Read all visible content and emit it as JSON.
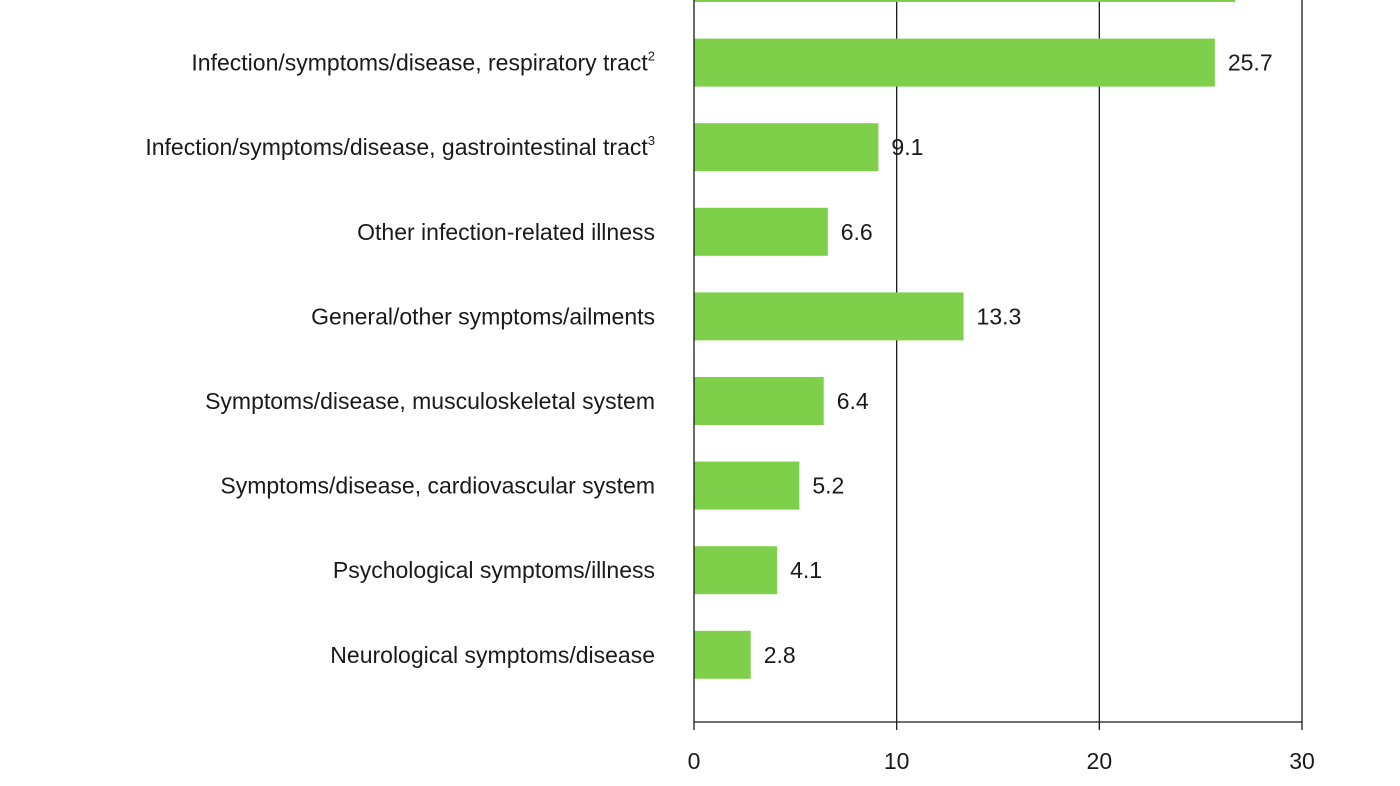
{
  "chart_data": {
    "type": "bar",
    "orientation": "horizontal",
    "categories": [
      {
        "text": "",
        "sup": ""
      },
      {
        "text": "Infection/symptoms/disease, respiratory tract",
        "sup": "2"
      },
      {
        "text": "Infection/symptoms/disease, gastrointestinal tract",
        "sup": "3"
      },
      {
        "text": "Other infection-related illness",
        "sup": ""
      },
      {
        "text": "General/other symptoms/ailments",
        "sup": ""
      },
      {
        "text": "Symptoms/disease, musculoskeletal system",
        "sup": ""
      },
      {
        "text": "Symptoms/disease, cardiovascular system",
        "sup": ""
      },
      {
        "text": "Psychological symptoms/illness",
        "sup": ""
      },
      {
        "text": "Neurological symptoms/disease",
        "sup": ""
      }
    ],
    "values": [
      26.7,
      25.7,
      9.1,
      6.6,
      13.3,
      6.4,
      5.2,
      4.1,
      2.8
    ],
    "value_labels": [
      "",
      "25.7",
      "9.1",
      "6.6",
      "13.3",
      "6.4",
      "5.2",
      "4.1",
      "2.8"
    ],
    "xlim": [
      0,
      30
    ],
    "xticks": [
      0,
      10,
      20,
      30
    ],
    "xtick_labels": [
      "0",
      "10",
      "20",
      "30"
    ],
    "xlabel": "",
    "ylabel": "",
    "title": "",
    "grid": "vertical",
    "bar_color": "#7ed04b",
    "grid_color": "#1a1a1a",
    "text_color": "#1a1a1a"
  }
}
